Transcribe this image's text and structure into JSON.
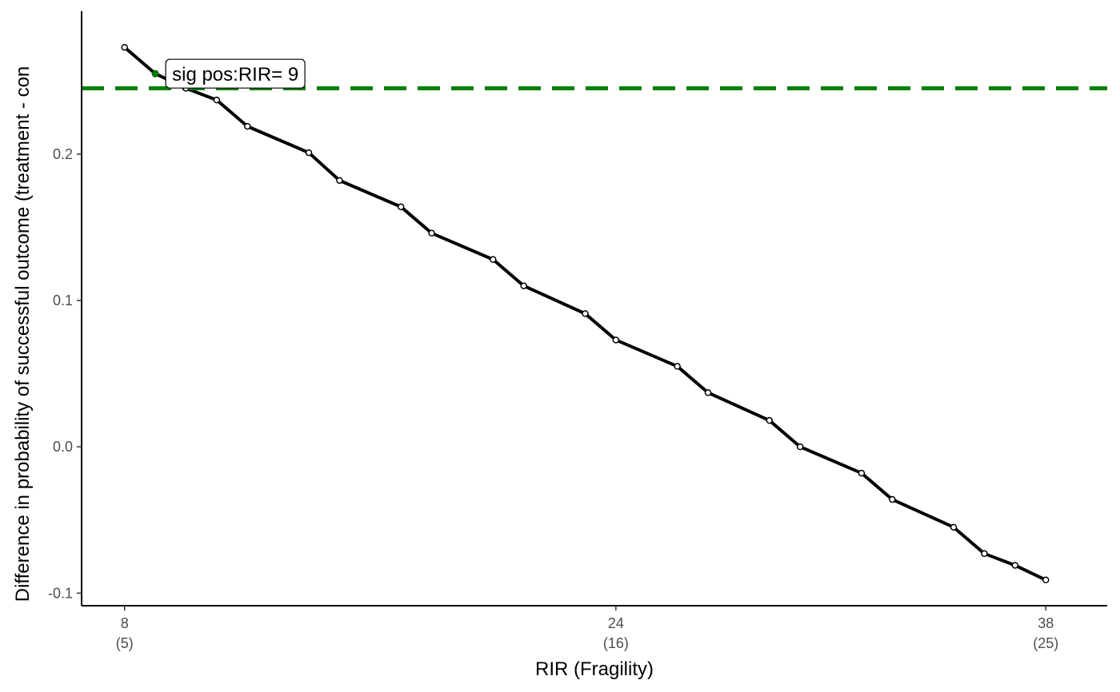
{
  "chart_data": {
    "type": "line",
    "xlabel": "RIR (Fragility)",
    "ylabel": "Difference in probability of successful outcome (treatment - con",
    "xlim": [
      6.6,
      40.0
    ],
    "ylim": [
      -0.1086,
      0.2977
    ],
    "x_ticks": [
      {
        "value": 8,
        "label": "8",
        "sublabel": "(5)"
      },
      {
        "value": 24,
        "label": "24",
        "sublabel": "(16)"
      },
      {
        "value": 38,
        "label": "38",
        "sublabel": "(25)"
      }
    ],
    "y_ticks": [
      {
        "value": -0.1,
        "label": "-0.1"
      },
      {
        "value": 0.0,
        "label": "0.0"
      },
      {
        "value": 0.1,
        "label": "0.1"
      },
      {
        "value": 0.2,
        "label": "0.2"
      }
    ],
    "series": [
      {
        "x": [
          8,
          9,
          10,
          11,
          12,
          14,
          15,
          17,
          18,
          20,
          21,
          23,
          24,
          26,
          27,
          29,
          30,
          32,
          33,
          35,
          36,
          37,
          38
        ],
        "y": [
          0.273,
          0.255,
          0.245,
          0.237,
          0.219,
          0.201,
          0.182,
          0.164,
          0.146,
          0.128,
          0.11,
          0.091,
          0.073,
          0.055,
          0.037,
          0.018,
          0.0,
          -0.018,
          -0.036,
          -0.055,
          -0.073,
          -0.081,
          -0.091
        ],
        "color": "#000000"
      }
    ],
    "highlight_point": {
      "x": 9,
      "y": 0.255,
      "color": "#008000"
    },
    "threshold_line": {
      "y": 0.245,
      "color": "#008000",
      "style": "dashed"
    },
    "annotations": [
      {
        "text": "sig pos:RIR= 9",
        "x": 9,
        "y": 0.255
      }
    ],
    "grid": false
  }
}
